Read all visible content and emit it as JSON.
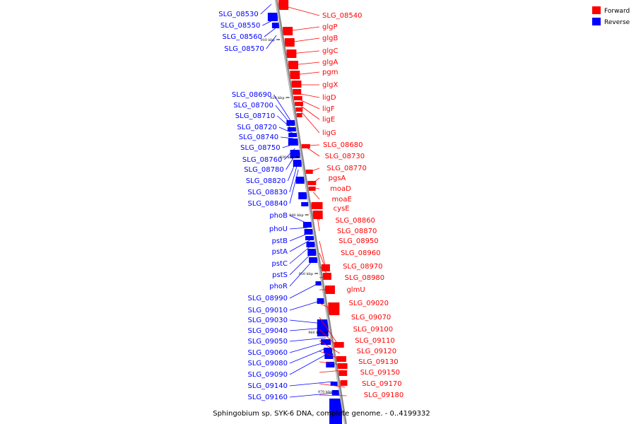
{
  "caption": "Sphingobium sp. SYK-6 DNA, complete genome. - 0..4199332",
  "legend": {
    "forward": {
      "label": "Forward",
      "color": "#ff0000"
    },
    "reverse": {
      "label": "Reverse",
      "color": "#0000ff"
    }
  },
  "backbone_color": "#8c8c8c",
  "ticks": [
    "910 kbp",
    "920 kbp",
    "930 kbp",
    "940 kbp",
    "950 kbp",
    "960 kbp",
    "970 kbp"
  ],
  "forward_genes": [
    "SLG_08540",
    "glgP",
    "glgB",
    "glgC",
    "glgA",
    "pgm",
    "glgX",
    "ligD",
    "ligF",
    "ligE",
    "ligG",
    "SLG_08680",
    "SLG_08730",
    "SLG_08770",
    "pgsA",
    "moaD",
    "moaE",
    "cysE",
    "SLG_08860",
    "SLG_08870",
    "SLG_08950",
    "SLG_08960",
    "SLG_08970",
    "SLG_08980",
    "glmU",
    "SLG_09020",
    "SLG_09070",
    "SLG_09100",
    "SLG_09110",
    "SLG_09120",
    "SLG_09130",
    "SLG_09150",
    "SLG_09170",
    "SLG_09180"
  ],
  "reverse_genes": [
    "SLG_08530",
    "SLG_08550",
    "SLG_08560",
    "SLG_08570",
    "SLG_08690",
    "SLG_08700",
    "SLG_08710",
    "SLG_08720",
    "SLG_08740",
    "SLG_08750",
    "SLG_08760",
    "SLG_08780",
    "SLG_08820",
    "SLG_08830",
    "SLG_08840",
    "phoB",
    "phoU",
    "pstB",
    "pstA",
    "pstC",
    "pstS",
    "phoR",
    "SLG_08990",
    "SLG_09010",
    "SLG_09030",
    "SLG_09040",
    "SLG_09050",
    "SLG_09060",
    "SLG_09080",
    "SLG_09090",
    "SLG_09140",
    "SLG_09160"
  ]
}
